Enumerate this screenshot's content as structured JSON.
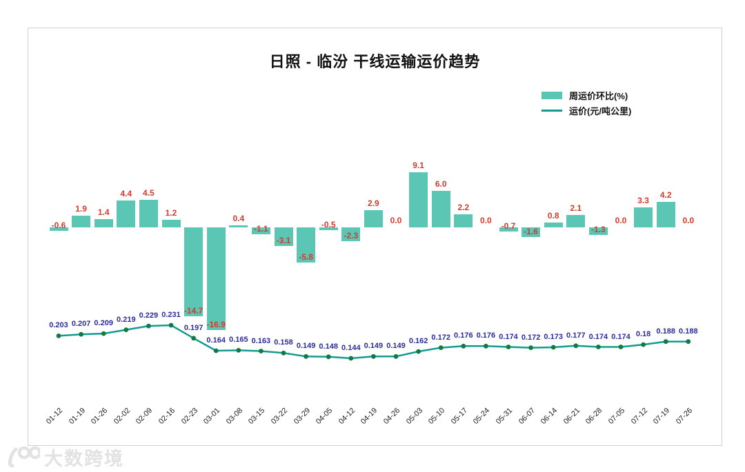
{
  "watermark": {
    "brand": "大数跨境",
    "logo": "100-logo"
  },
  "chart_data": {
    "type": "bar+line",
    "title": "日照 - 临汾 干线运输运价趋势",
    "grid": false,
    "legend_position": "top-right",
    "categories": [
      "01-12",
      "01-19",
      "01-26",
      "02-02",
      "02-09",
      "02-16",
      "02-23",
      "03-01",
      "03-08",
      "03-15",
      "03-22",
      "03-29",
      "04-05",
      "04-12",
      "04-19",
      "04-26",
      "05-03",
      "05-10",
      "05-17",
      "05-24",
      "05-31",
      "06-07",
      "06-14",
      "06-21",
      "06-28",
      "07-05",
      "07-12",
      "07-19",
      "07-26"
    ],
    "series": [
      {
        "name": "周运价环比(%)",
        "type": "bar",
        "color": "#5cc6b4",
        "label_color": "#d43a2f",
        "values": [
          -0.6,
          1.9,
          1.4,
          4.4,
          4.5,
          1.2,
          -14.7,
          -16.9,
          0.4,
          -1.1,
          -3.1,
          -5.8,
          -0.5,
          -2.3,
          2.9,
          0.0,
          9.1,
          6.0,
          2.2,
          0.0,
          -0.7,
          -1.6,
          0.8,
          2.1,
          -1.3,
          0.0,
          3.3,
          4.2,
          0.0
        ]
      },
      {
        "name": "运价(元/吨公里)",
        "type": "line",
        "color": "#119b8e",
        "marker_color": "#127a45",
        "label_color": "#2b2ba0",
        "values": [
          "0.203",
          "0.207",
          "0.209",
          "0.219",
          "0.229",
          "0.231",
          "0.197",
          "0.164",
          "0.165",
          "0.163",
          "0.158",
          "0.149",
          "0.148",
          "0.144",
          "0.149",
          "0.149",
          "0.162",
          "0.172",
          "0.176",
          "0.176",
          "0.174",
          "0.172",
          "0.173",
          "0.177",
          "0.174",
          "0.174",
          "0.18",
          "0.188",
          "0.188"
        ]
      }
    ]
  }
}
